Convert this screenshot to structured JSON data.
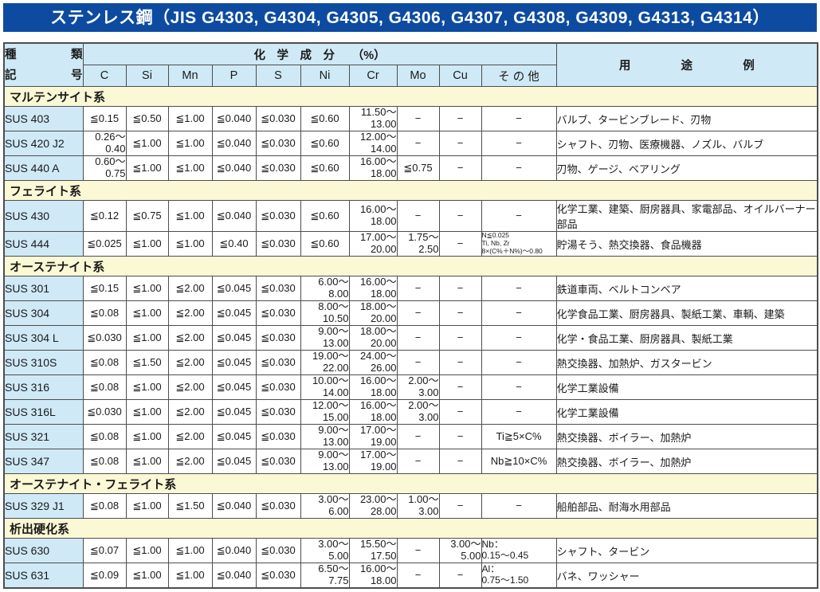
{
  "title": "ステンレス鋼（JIS G4303, G4304, G4305, G4306, G4307, G4308, G4309, G4313, G4314）",
  "colors": {
    "title_bg": "#0d4ba1",
    "title_text": "#ffffff",
    "header_bg": "#cfe9f7",
    "section_bg": "#fbf8d5",
    "code_bg": "#cfe9f7",
    "border": "#4d4d4d"
  },
  "header": {
    "type_label_line1": "種　類",
    "type_label_line2": "記　号",
    "composition_label": "化　学　成　分　　（%）",
    "elements": [
      "C",
      "Si",
      "Mn",
      "P",
      "S",
      "Ni",
      "Cr",
      "Mo",
      "Cu",
      "そ の 他"
    ],
    "usage_label": "用　途　例"
  },
  "sections": [
    {
      "name": "マルテンサイト系",
      "rows": [
        {
          "code": "SUS 403",
          "c": "≦0.15",
          "si": "≦0.50",
          "mn": "≦1.00",
          "p": "≦0.040",
          "s": "≦0.030",
          "ni": "≦0.60",
          "cr": "11.50～\n13.00",
          "mo": "−",
          "cu": "−",
          "other": "−",
          "usage": "バルブ、タービンブレード、刃物"
        },
        {
          "code": "SUS 420 J2",
          "c": "0.26～\n0.40",
          "si": "≦1.00",
          "mn": "≦1.00",
          "p": "≦0.040",
          "s": "≦0.030",
          "ni": "≦0.60",
          "cr": "12.00～\n14.00",
          "mo": "−",
          "cu": "−",
          "other": "−",
          "usage": "シャフト、刃物、医療機器、ノズル、バルブ"
        },
        {
          "code": "SUS 440 A",
          "c": "0.60～\n0.75",
          "si": "≦1.00",
          "mn": "≦1.00",
          "p": "≦0.040",
          "s": "≦0.030",
          "ni": "≦0.60",
          "cr": "16.00～\n18.00",
          "mo": "≦0.75",
          "cu": "−",
          "other": "−",
          "usage": "刃物、ゲージ、ベアリング"
        }
      ]
    },
    {
      "name": "フェライト系",
      "rows": [
        {
          "code": "SUS 430",
          "c": "≦0.12",
          "si": "≦0.75",
          "mn": "≦1.00",
          "p": "≦0.040",
          "s": "≦0.030",
          "ni": "≦0.60",
          "cr": "16.00～\n18.00",
          "mo": "−",
          "cu": "−",
          "other": "−",
          "usage": "化学工業、建築、厨房器具、家電部品、オイルバーナー部品"
        },
        {
          "code": "SUS 444",
          "c": "≦0.025",
          "si": "≦1.00",
          "mn": "≦1.00",
          "p": "≦0.40",
          "s": "≦0.030",
          "ni": "≦0.60",
          "cr": "17.00～\n20.00",
          "mo": "1.75～\n2.50",
          "cu": "−",
          "other": "N≦0.025\nTi, Nb, Zr\n8×(C%＋N%)～0.80",
          "usage": "貯湯そう、熱交換器、食品機器"
        }
      ]
    },
    {
      "name": "オーステナイト系",
      "rows": [
        {
          "code": "SUS 301",
          "c": "≦0.15",
          "si": "≦1.00",
          "mn": "≦2.00",
          "p": "≦0.045",
          "s": "≦0.030",
          "ni": "6.00～\n8.00",
          "cr": "16.00～\n18.00",
          "mo": "−",
          "cu": "−",
          "other": "−",
          "usage": "鉄道車両、ベルトコンベア"
        },
        {
          "code": "SUS 304",
          "c": "≦0.08",
          "si": "≦1.00",
          "mn": "≦2.00",
          "p": "≦0.045",
          "s": "≦0.030",
          "ni": "8.00～\n10.50",
          "cr": "18.00～\n20.00",
          "mo": "−",
          "cu": "−",
          "other": "−",
          "usage": "化学食品工業、厨房器具、製紙工業、車輌、建築"
        },
        {
          "code": "SUS 304 L",
          "c": "≦0.030",
          "si": "≦1.00",
          "mn": "≦2.00",
          "p": "≦0.045",
          "s": "≦0.030",
          "ni": "9.00～\n13.00",
          "cr": "18.00～\n20.00",
          "mo": "−",
          "cu": "−",
          "other": "−",
          "usage": "化学・食品工業、厨房器具、製紙工業"
        },
        {
          "code": "SUS 310S",
          "c": "≦0.08",
          "si": "≦1.50",
          "mn": "≦2.00",
          "p": "≦0.045",
          "s": "≦0.030",
          "ni": "19.00～\n22.00",
          "cr": "24.00～\n26.00",
          "mo": "−",
          "cu": "−",
          "other": "−",
          "usage": "熱交換器、加熱炉、ガスタービン"
        },
        {
          "code": "SUS 316",
          "c": "≦0.08",
          "si": "≦1.00",
          "mn": "≦2.00",
          "p": "≦0.045",
          "s": "≦0.030",
          "ni": "10.00～\n14.00",
          "cr": "16.00～\n18.00",
          "mo": "2.00～\n3.00",
          "cu": "−",
          "other": "−",
          "usage": "化学工業設備"
        },
        {
          "code": "SUS 316L",
          "c": "≦0.030",
          "si": "≦1.00",
          "mn": "≦2.00",
          "p": "≦0.045",
          "s": "≦0.030",
          "ni": "12.00～\n15.00",
          "cr": "16.00～\n18.00",
          "mo": "2.00～\n3.00",
          "cu": "−",
          "other": "−",
          "usage": "化学工業設備"
        },
        {
          "code": "SUS 321",
          "c": "≦0.08",
          "si": "≦1.00",
          "mn": "≦2.00",
          "p": "≦0.045",
          "s": "≦0.030",
          "ni": "9.00～\n13.00",
          "cr": "17.00～\n19.00",
          "mo": "−",
          "cu": "−",
          "other": "Ti≧5×C%",
          "usage": "熱交換器、ボイラー、加熱炉"
        },
        {
          "code": "SUS 347",
          "c": "≦0.08",
          "si": "≦1.00",
          "mn": "≦2.00",
          "p": "≦0.045",
          "s": "≦0.030",
          "ni": "9.00～\n13.00",
          "cr": "17.00～\n19.00",
          "mo": "−",
          "cu": "−",
          "other": "Nb≧10×C%",
          "usage": "熱交換器、ボイラー、加熱炉"
        }
      ]
    },
    {
      "name": "オーステナイト・フェライト系",
      "rows": [
        {
          "code": "SUS 329 J1",
          "c": "≦0.08",
          "si": "≦1.00",
          "mn": "≦1.50",
          "p": "≦0.040",
          "s": "≦0.030",
          "ni": "3.00～\n6.00",
          "cr": "23.00～\n28.00",
          "mo": "1.00～\n3.00",
          "cu": "−",
          "other": "−",
          "usage": "船舶部品、耐海水用部品"
        }
      ]
    },
    {
      "name": "析出硬化系",
      "rows": [
        {
          "code": "SUS 630",
          "c": "≦0.07",
          "si": "≦1.00",
          "mn": "≦1.00",
          "p": "≦0.040",
          "s": "≦0.030",
          "ni": "3.00～\n5.00",
          "cr": "15.50～\n17.50",
          "mo": "−",
          "cu": "3.00～\n5.00",
          "other": "Nb：\n0.15～0.45",
          "usage": "シャフト、タービン"
        },
        {
          "code": "SUS 631",
          "c": "≦0.09",
          "si": "≦1.00",
          "mn": "≦1.00",
          "p": "≦0.040",
          "s": "≦0.030",
          "ni": "6.50～\n7.75",
          "cr": "16.00～\n18.00",
          "mo": "−",
          "cu": "−",
          "other": "Al：\n0.75～1.50",
          "usage": "バネ、ワッシャー"
        }
      ]
    }
  ]
}
